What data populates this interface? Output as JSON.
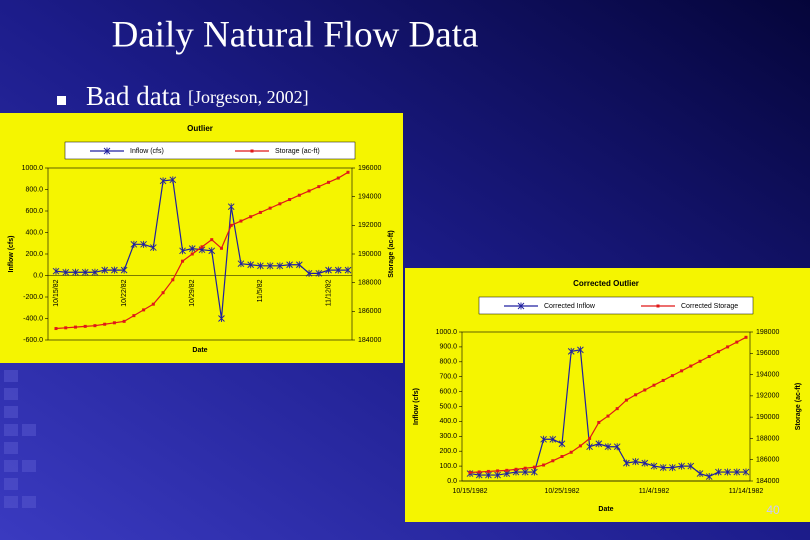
{
  "slide": {
    "title": "Daily Natural Flow Data",
    "bullet": "Bad data",
    "citation": "[Jorgeson, 2002]",
    "page_number": "40"
  },
  "chart_data": [
    {
      "type": "line",
      "title": "Outlier",
      "x_label": "Date",
      "y_label": "Inflow (cfs)",
      "y2_label": "Storage (ac-ft)",
      "categories": [
        "10/15/82",
        null,
        null,
        null,
        null,
        null,
        null,
        "10/22/82",
        null,
        null,
        null,
        null,
        null,
        null,
        "10/29/82",
        null,
        null,
        null,
        null,
        null,
        null,
        "11/5/82",
        null,
        null,
        null,
        null,
        null,
        null,
        "11/12/82",
        null,
        null
      ],
      "series": [
        {
          "name": "Inflow (cfs)",
          "color": "#2020a0",
          "values": [
            40,
            30,
            30,
            30,
            30,
            50,
            50,
            50,
            290,
            290,
            260,
            880,
            890,
            230,
            250,
            240,
            230,
            -400,
            640,
            110,
            100,
            90,
            90,
            90,
            100,
            100,
            20,
            20,
            50,
            50,
            50
          ]
        },
        {
          "name": "Storage (ac-ft)",
          "color": "#e01818",
          "axis": "y2",
          "values": [
            184800,
            184850,
            184900,
            184950,
            185000,
            185100,
            185200,
            185300,
            185700,
            186100,
            186500,
            187300,
            188200,
            189500,
            190000,
            190500,
            191000,
            190400,
            192000,
            192300,
            192600,
            192900,
            193200,
            193500,
            193800,
            194100,
            194400,
            194700,
            195000,
            195300,
            195700
          ]
        }
      ],
      "ylim": [
        -600,
        1000
      ],
      "yticks": [
        {
          "value": -600,
          "label": "-600.0"
        },
        {
          "value": -400,
          "label": "-400.0"
        },
        {
          "value": -200,
          "label": "-200.0"
        },
        {
          "value": 0,
          "label": "0.0"
        },
        {
          "value": 200,
          "label": "200.0"
        },
        {
          "value": 400,
          "label": "400.0"
        },
        {
          "value": 600,
          "label": "600.0"
        },
        {
          "value": 800,
          "label": "800.0"
        },
        {
          "value": 1000,
          "label": "1000.0"
        }
      ],
      "y2lim": [
        184000,
        196000
      ],
      "y2ticks": [
        184000,
        186000,
        188000,
        190000,
        192000,
        194000,
        196000
      ],
      "legend": "top",
      "background": "#f5f500"
    },
    {
      "type": "line",
      "title": "Corrected Outlier",
      "x_label": "Date",
      "y_label": "Inflow (cfs)",
      "y2_label": "Storage (ac-ft)",
      "categories": [
        "10/15/1982",
        null,
        null,
        null,
        null,
        null,
        null,
        null,
        null,
        null,
        "10/25/1982",
        null,
        null,
        null,
        null,
        null,
        null,
        null,
        null,
        null,
        "11/4/1982",
        null,
        null,
        null,
        null,
        null,
        null,
        null,
        null,
        null,
        "11/14/1982"
      ],
      "series": [
        {
          "name": "Corrected Inflow",
          "color": "#2020a0",
          "values": [
            50,
            40,
            40,
            40,
            50,
            60,
            60,
            60,
            280,
            280,
            250,
            870,
            880,
            230,
            250,
            230,
            230,
            120,
            130,
            120,
            100,
            90,
            90,
            100,
            100,
            50,
            30,
            60,
            60,
            60,
            60
          ]
        },
        {
          "name": "Corrected Storage",
          "color": "#e01818",
          "axis": "y2",
          "values": [
            184800,
            184850,
            184900,
            184950,
            185000,
            185100,
            185200,
            185300,
            185500,
            185900,
            186300,
            186700,
            187300,
            188000,
            189500,
            190100,
            190800,
            191600,
            192100,
            192550,
            193000,
            193450,
            193900,
            194350,
            194800,
            195250,
            195700,
            196150,
            196600,
            197050,
            197500
          ]
        }
      ],
      "ylim": [
        0,
        1000
      ],
      "yticks": [
        {
          "value": 0,
          "label": "0.0"
        },
        {
          "value": 100,
          "label": "100.0"
        },
        {
          "value": 200,
          "label": "200.0"
        },
        {
          "value": 300,
          "label": "300.0"
        },
        {
          "value": 400,
          "label": "400.0"
        },
        {
          "value": 500,
          "label": "500.0"
        },
        {
          "value": 600,
          "label": "600.0"
        },
        {
          "value": 700,
          "label": "700.0"
        },
        {
          "value": 800,
          "label": "800.0"
        },
        {
          "value": 900,
          "label": "900.0"
        },
        {
          "value": 1000,
          "label": "1000.0"
        }
      ],
      "y2lim": [
        184000,
        198000
      ],
      "y2ticks": [
        184000,
        186000,
        188000,
        190000,
        192000,
        194000,
        196000,
        198000
      ],
      "legend": "top",
      "background": "#f5f500"
    }
  ]
}
